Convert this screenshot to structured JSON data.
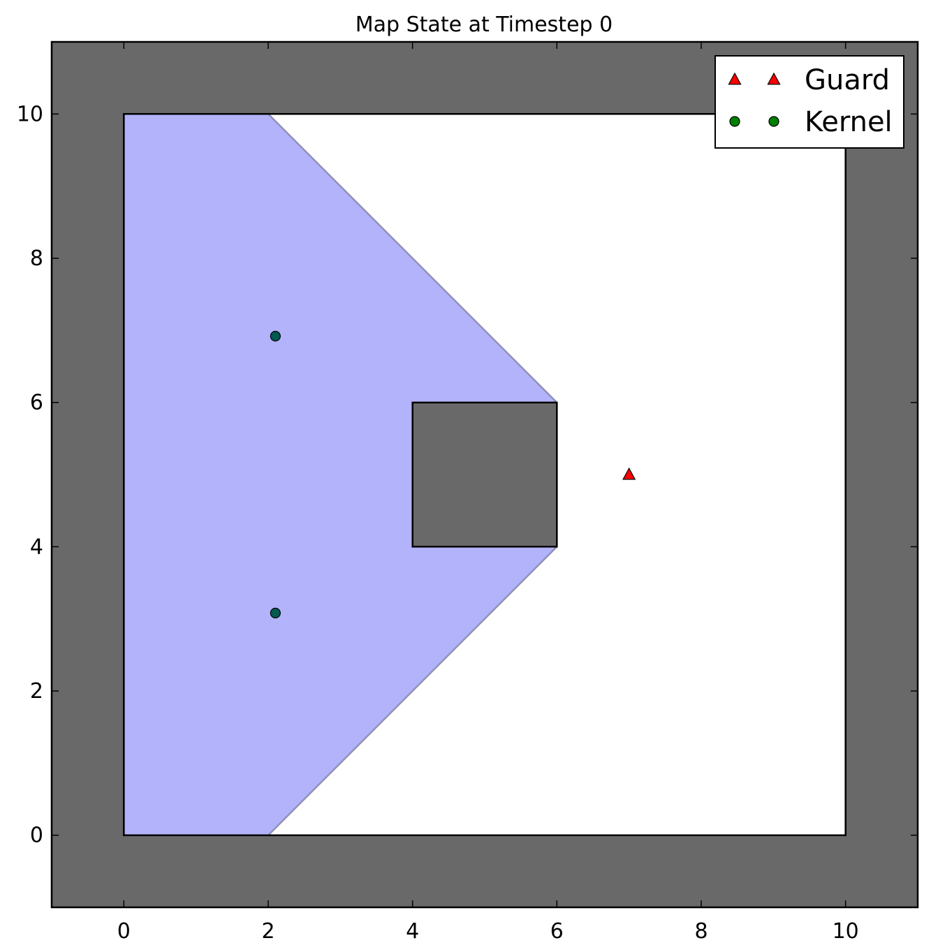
{
  "chart_data": {
    "type": "scatter",
    "title": "Map State at Timestep 0",
    "xlabel": "",
    "ylabel": "",
    "xlim": [
      -1,
      11
    ],
    "ylim": [
      -1,
      11
    ],
    "xticks": [
      0,
      2,
      4,
      6,
      8,
      10
    ],
    "yticks": [
      0,
      2,
      4,
      6,
      8,
      10
    ],
    "grid": false,
    "legend_position": "top-right",
    "colors": {
      "obstacle": "#696969",
      "free_space": "#ffffff",
      "visibility": "#b3b3fc",
      "visibility_edge": "#9090b8",
      "guard": "#ff0000",
      "kernel": "#008000",
      "kernel_in_visibility": "#005a50"
    },
    "boundary": [
      [
        0,
        0
      ],
      [
        10,
        0
      ],
      [
        10,
        10
      ],
      [
        0,
        10
      ]
    ],
    "obstacles": [
      {
        "name": "inner-obstacle",
        "polygon": [
          [
            4,
            4
          ],
          [
            6,
            4
          ],
          [
            6,
            6
          ],
          [
            4,
            6
          ]
        ]
      }
    ],
    "visibility_region": [
      [
        0,
        0
      ],
      [
        2,
        0
      ],
      [
        6,
        4
      ],
      [
        6,
        6
      ],
      [
        2,
        10
      ],
      [
        0,
        10
      ]
    ],
    "series": [
      {
        "name": "Guard",
        "marker": "triangle",
        "points": [
          [
            7,
            5
          ]
        ]
      },
      {
        "name": "Kernel",
        "marker": "circle",
        "points": [
          [
            2.1,
            6.92
          ],
          [
            2.1,
            3.08
          ]
        ]
      }
    ]
  }
}
